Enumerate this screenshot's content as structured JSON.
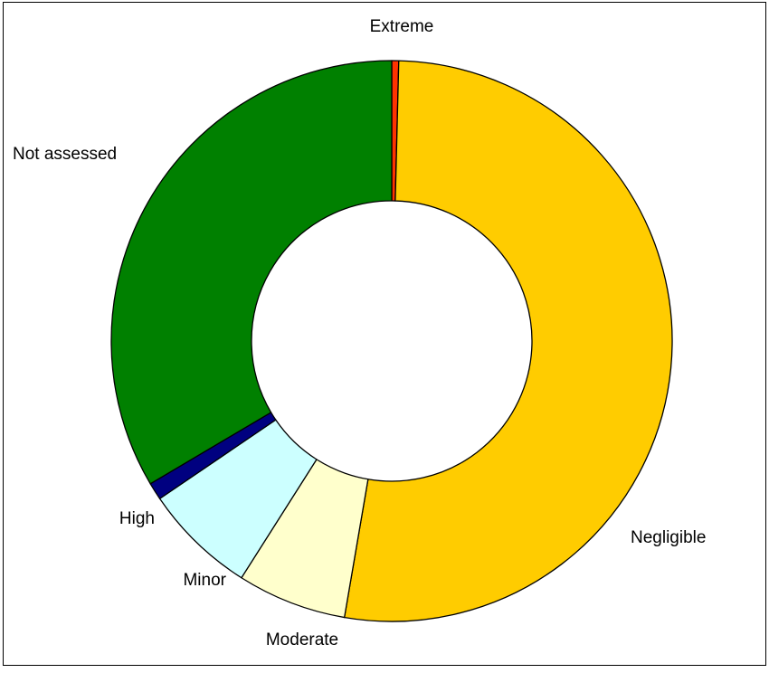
{
  "chart_data": {
    "type": "pie",
    "variant": "donut",
    "title": "",
    "legend": "none",
    "start_angle_deg": 0,
    "direction": "clockwise",
    "slices": [
      {
        "label": "Extreme",
        "value": 0.4,
        "color": "#ff3300"
      },
      {
        "label": "Negligible",
        "value": 52.3,
        "color": "#ffcc00"
      },
      {
        "label": "Moderate",
        "value": 6.3,
        "color": "#ffffcc"
      },
      {
        "label": "Minor",
        "value": 6.5,
        "color": "#ccffff"
      },
      {
        "label": "High",
        "value": 1.0,
        "color": "#000080"
      },
      {
        "label": "Not assessed",
        "value": 33.5,
        "color": "#008000"
      }
    ]
  }
}
